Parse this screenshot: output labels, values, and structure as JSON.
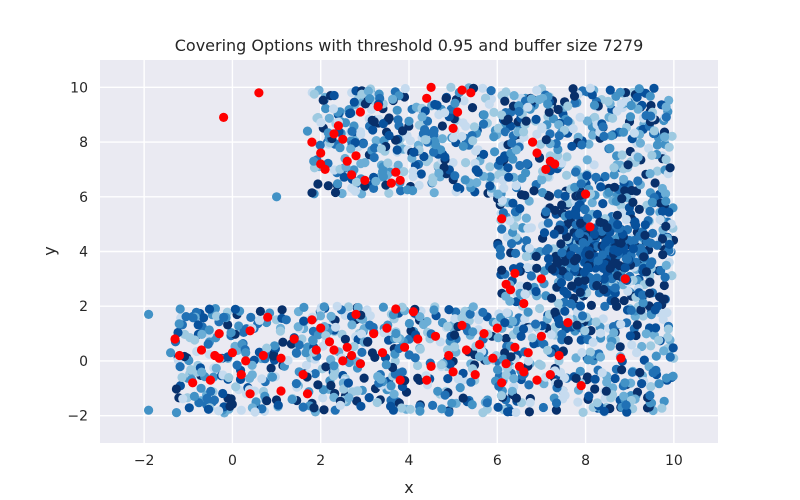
{
  "chart_data": {
    "type": "scatter",
    "title": "Covering Options with threshold 0.95 and buffer size 7279",
    "xlabel": "x",
    "ylabel": "y",
    "xlim": [
      -3,
      11
    ],
    "ylim": [
      -3,
      11
    ],
    "x_ticks": [
      -2,
      0,
      2,
      4,
      6,
      8,
      10
    ],
    "y_ticks": [
      -2,
      0,
      2,
      4,
      6,
      8,
      10
    ],
    "x_tick_labels": [
      "−2",
      "0",
      "2",
      "4",
      "6",
      "8",
      "10"
    ],
    "y_tick_labels": [
      "−2",
      "0",
      "2",
      "4",
      "6",
      "8",
      "10"
    ],
    "grid": true,
    "background_color": "#eaeaf2",
    "grid_color": "#ffffff",
    "blue_palette": [
      "#08306b",
      "#08519c",
      "#2171b5",
      "#4292c6",
      "#6baed6",
      "#9ecae1",
      "#c6dbef"
    ],
    "red_color": "#ff0000",
    "series": [
      {
        "color": "#ff0000",
        "points": [
          [
            -0.2,
            8.9
          ],
          [
            0.6,
            9.8
          ],
          [
            1.8,
            8.0
          ],
          [
            2.0,
            7.2
          ],
          [
            2.0,
            7.6
          ],
          [
            2.1,
            7.0
          ],
          [
            2.3,
            8.3
          ],
          [
            2.4,
            8.6
          ],
          [
            2.5,
            8.1
          ],
          [
            2.6,
            7.3
          ],
          [
            2.7,
            6.8
          ],
          [
            2.8,
            7.5
          ],
          [
            2.9,
            9.1
          ],
          [
            3.0,
            6.6
          ],
          [
            3.3,
            9.3
          ],
          [
            3.7,
            6.9
          ],
          [
            3.8,
            6.6
          ],
          [
            3.6,
            6.5
          ],
          [
            4.4,
            9.6
          ],
          [
            4.5,
            10.0
          ],
          [
            5.2,
            9.9
          ],
          [
            5.4,
            9.8
          ],
          [
            5.0,
            8.5
          ],
          [
            5.1,
            9.1
          ],
          [
            6.1,
            5.2
          ],
          [
            6.2,
            2.8
          ],
          [
            6.3,
            2.6
          ],
          [
            6.6,
            2.1
          ],
          [
            6.4,
            3.2
          ],
          [
            6.8,
            8.0
          ],
          [
            6.9,
            7.6
          ],
          [
            7.2,
            7.3
          ],
          [
            7.1,
            7.0
          ],
          [
            7.3,
            7.2
          ],
          [
            7.0,
            3.0
          ],
          [
            8.0,
            6.1
          ],
          [
            8.1,
            4.9
          ],
          [
            8.9,
            3.0
          ],
          [
            8.8,
            0.1
          ],
          [
            -1.3,
            0.8
          ],
          [
            -1.2,
            0.2
          ],
          [
            -0.9,
            -0.8
          ],
          [
            -0.7,
            0.4
          ],
          [
            -0.5,
            -0.7
          ],
          [
            -0.3,
            1.0
          ],
          [
            -0.3,
            0.1
          ],
          [
            0.0,
            0.3
          ],
          [
            0.2,
            -0.5
          ],
          [
            0.4,
            -1.2
          ],
          [
            0.4,
            1.1
          ],
          [
            0.7,
            0.2
          ],
          [
            0.8,
            1.6
          ],
          [
            1.1,
            0.1
          ],
          [
            1.1,
            -1.1
          ],
          [
            1.6,
            -0.5
          ],
          [
            1.7,
            -1.2
          ],
          [
            1.8,
            1.5
          ],
          [
            1.9,
            0.4
          ],
          [
            2.0,
            1.2
          ],
          [
            2.2,
            0.7
          ],
          [
            2.3,
            0.4
          ],
          [
            2.5,
            0.0
          ],
          [
            2.6,
            0.5
          ],
          [
            2.7,
            0.2
          ],
          [
            2.8,
            1.7
          ],
          [
            2.9,
            -0.1
          ],
          [
            3.2,
            1.0
          ],
          [
            3.5,
            1.2
          ],
          [
            3.7,
            1.9
          ],
          [
            3.8,
            -0.7
          ],
          [
            3.9,
            0.5
          ],
          [
            4.1,
            1.8
          ],
          [
            4.2,
            0.8
          ],
          [
            4.4,
            -0.7
          ],
          [
            4.5,
            -0.2
          ],
          [
            4.6,
            0.9
          ],
          [
            5.0,
            -0.4
          ],
          [
            5.2,
            1.3
          ],
          [
            5.3,
            0.4
          ],
          [
            5.5,
            -0.5
          ],
          [
            5.7,
            1.0
          ],
          [
            5.9,
            0.1
          ],
          [
            6.0,
            1.2
          ],
          [
            6.1,
            -0.8
          ],
          [
            6.4,
            0.5
          ],
          [
            6.6,
            -0.4
          ],
          [
            6.9,
            -0.7
          ],
          [
            7.0,
            0.9
          ],
          [
            7.2,
            -0.5
          ],
          [
            7.4,
            0.2
          ],
          [
            7.6,
            1.4
          ],
          [
            7.9,
            -0.9
          ],
          [
            6.2,
            -0.1
          ],
          [
            5.6,
            0.6
          ],
          [
            4.9,
            0.2
          ],
          [
            3.4,
            0.3
          ],
          [
            1.4,
            0.8
          ],
          [
            0.3,
            0.0
          ],
          [
            -0.4,
            0.2
          ],
          [
            6.7,
            0.3
          ],
          [
            6.5,
            -0.2
          ]
        ]
      }
    ]
  }
}
